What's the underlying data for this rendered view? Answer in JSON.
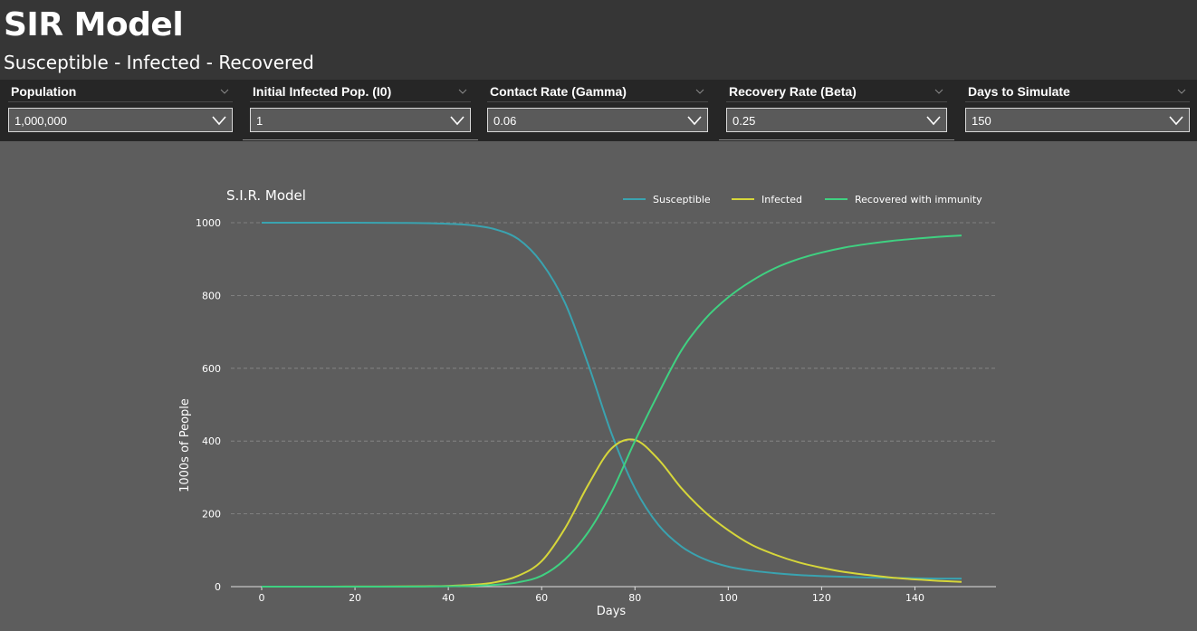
{
  "header": {
    "title": "SIR Model",
    "subtitle": "Susceptible - Infected - Recovered"
  },
  "filters": [
    {
      "label": "Population",
      "value": "1,000,000"
    },
    {
      "label": "Initial Infected Pop. (I0)",
      "value": "1"
    },
    {
      "label": "Contact Rate (Gamma)",
      "value": "0.06"
    },
    {
      "label": "Recovery Rate (Beta)",
      "value": "0.25"
    },
    {
      "label": "Days to Simulate",
      "value": "150"
    }
  ],
  "icons": {
    "slicer_header": "chevron-down-icon",
    "dropdown": "chevron-down-icon"
  },
  "colors": {
    "background": "#5d5d5d",
    "header": "#363636",
    "filter_bar": "#262626",
    "susceptible": "#3aa3b0",
    "infected": "#d6d63a",
    "recovered": "#3fd181"
  },
  "chart_data": {
    "type": "line",
    "title": "S.I.R. Model",
    "xlabel": "Days",
    "ylabel": "1000s of People",
    "xlim": [
      0,
      150
    ],
    "ylim": [
      0,
      1000
    ],
    "xticks": [
      0,
      20,
      40,
      60,
      80,
      100,
      120,
      140
    ],
    "yticks": [
      0,
      200,
      400,
      600,
      800,
      1000
    ],
    "grid": "horizontal dashed",
    "legend_position": "top-right",
    "x": [
      0,
      5,
      10,
      15,
      20,
      25,
      30,
      35,
      40,
      45,
      50,
      55,
      60,
      65,
      70,
      75,
      80,
      85,
      90,
      95,
      100,
      105,
      110,
      115,
      120,
      125,
      130,
      135,
      140,
      145,
      150
    ],
    "series": [
      {
        "name": "Susceptible",
        "color": "#3aa3b0",
        "values": [
          1000,
          1000,
          1000,
          1000,
          999.9,
          999.8,
          999.5,
          998.9,
          997,
          993,
          982,
          955,
          890,
          780,
          610,
          420,
          270,
          170,
          110,
          75,
          55,
          44,
          37,
          32,
          29,
          27,
          25,
          24,
          23,
          22,
          22
        ]
      },
      {
        "name": "Infected",
        "color": "#d6d63a",
        "values": [
          0,
          0,
          0,
          0.1,
          0.2,
          0.3,
          0.5,
          1,
          2,
          5,
          12,
          30,
          70,
          160,
          280,
          380,
          403,
          350,
          270,
          205,
          155,
          115,
          88,
          67,
          52,
          40,
          32,
          25,
          20,
          16,
          13
        ]
      },
      {
        "name": "Recovered with immunity",
        "color": "#3fd181",
        "values": [
          0,
          0,
          0,
          0,
          0,
          0,
          0,
          0.3,
          1,
          2,
          5,
          12,
          30,
          75,
          150,
          260,
          400,
          530,
          650,
          735,
          795,
          840,
          875,
          900,
          918,
          932,
          942,
          950,
          956,
          961,
          965
        ]
      }
    ]
  }
}
